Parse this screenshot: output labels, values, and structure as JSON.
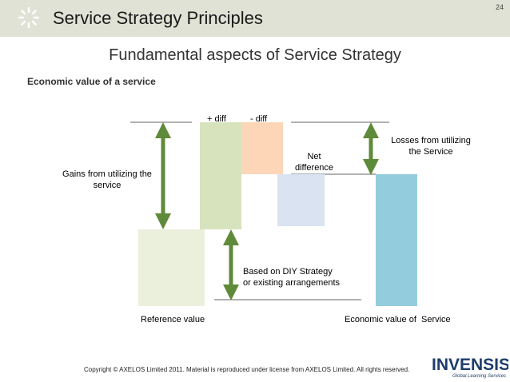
{
  "slide": {
    "page_number": "24",
    "title": "Service Strategy Principles",
    "subtitle": "Fundamental aspects of Service Strategy",
    "section_heading": "Economic value of a service"
  },
  "diagram": {
    "labels": {
      "plus_diff": "+ diff",
      "minus_diff": "- diff",
      "net_difference": "Net\ndifference",
      "losses": "Losses from utilizing\nthe Service",
      "gains": "Gains from utilizing the\nservice",
      "based_on": "Based on DIY Strategy\nor existing arrangements",
      "reference_value": "Reference value",
      "economic_value": "Economic value of  Service"
    },
    "colors": {
      "plus_diff": "#d7e3bd",
      "minus_diff": "#fcd6b7",
      "net_difference": "#d9e3f1",
      "reference_value": "#ebf0dd",
      "economic_value": "#93cddd",
      "arrow": "#5f8a3a"
    }
  },
  "footer": {
    "copyright": "Copyright © AXELOS Limited 2011. Material is reproduced under license from AXELOS Limited. All rights reserved.",
    "brand_name": "INVENSIS",
    "brand_tagline": "Global Learning Services",
    "brand_color": "#1d3d6b"
  }
}
